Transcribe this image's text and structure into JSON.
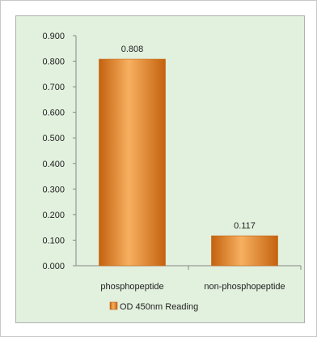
{
  "chart_data": {
    "type": "bar",
    "categories": [
      "phosphopeptide",
      "non-phosphopeptide"
    ],
    "series": [
      {
        "name": "OD 450nm Reading",
        "values": [
          0.808,
          0.117
        ]
      }
    ],
    "data_labels": [
      "0.808",
      "0.117"
    ],
    "y_ticks": [
      "0.000",
      "0.100",
      "0.200",
      "0.300",
      "0.400",
      "0.500",
      "0.600",
      "0.700",
      "0.800",
      "0.900"
    ],
    "ylim": [
      0,
      0.9
    ],
    "grid": false,
    "legend_position": "bottom",
    "colors": {
      "bar": "#e8821e",
      "bar_light": "#f7b060",
      "bar_dark": "#c4620e",
      "plot_bg": "#e2f0de"
    }
  }
}
